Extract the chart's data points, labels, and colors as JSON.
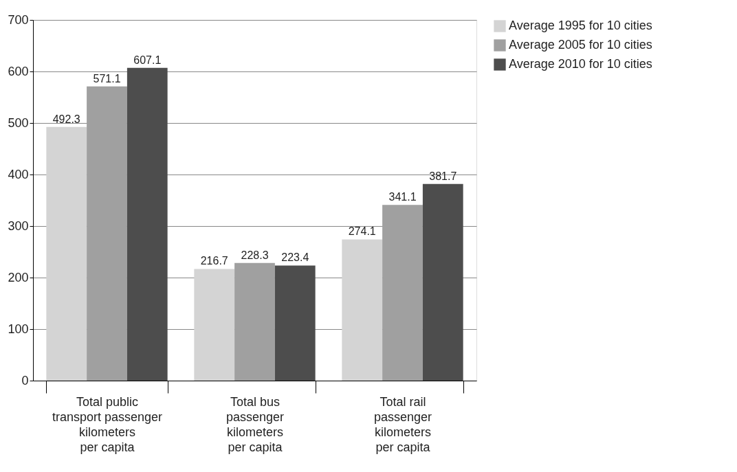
{
  "chart_data": {
    "type": "bar",
    "categories": [
      "Total public\ntransport passenger\nkilometers\nper capita",
      "Total bus\npassenger\nkilometers\nper capita",
      "Total rail\npassenger\nkilometers\nper capita"
    ],
    "series": [
      {
        "name": "Average 1995 for 10 cities",
        "color": "#d4d4d4",
        "values": [
          492.3,
          216.7,
          274.1
        ]
      },
      {
        "name": "Average 2005 for 10 cities",
        "color": "#a0a0a0",
        "values": [
          571.1,
          228.3,
          341.1
        ]
      },
      {
        "name": "Average 2010 for 10 cities",
        "color": "#4d4d4d",
        "values": [
          607.1,
          223.4,
          381.7
        ]
      }
    ],
    "ylim": [
      0,
      700
    ],
    "yticks": [
      0,
      100,
      200,
      300,
      400,
      500,
      600,
      700
    ],
    "grid": "y",
    "legend": "top right",
    "data_labels": true
  }
}
